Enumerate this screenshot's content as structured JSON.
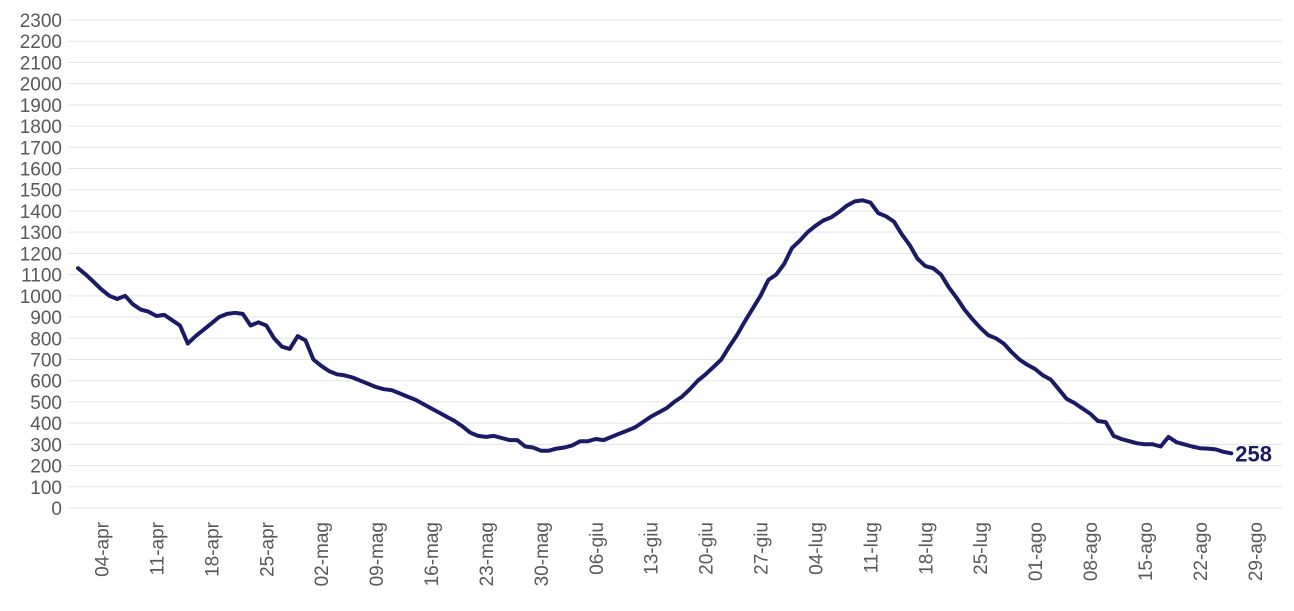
{
  "chart_data": {
    "type": "line",
    "title": "",
    "xlabel": "",
    "ylabel": "",
    "ylim": [
      0,
      2300
    ],
    "yticks": [
      0,
      100,
      200,
      300,
      400,
      500,
      600,
      700,
      800,
      900,
      1000,
      1100,
      1200,
      1300,
      1400,
      1500,
      1600,
      1700,
      1800,
      1900,
      2000,
      2100,
      2200,
      2300
    ],
    "xticks": [
      {
        "day": 3,
        "label": "04-apr"
      },
      {
        "day": 10,
        "label": "11-apr"
      },
      {
        "day": 17,
        "label": "18-apr"
      },
      {
        "day": 24,
        "label": "25-apr"
      },
      {
        "day": 31,
        "label": "02-mag"
      },
      {
        "day": 38,
        "label": "09-mag"
      },
      {
        "day": 45,
        "label": "16-mag"
      },
      {
        "day": 52,
        "label": "23-mag"
      },
      {
        "day": 59,
        "label": "30-mag"
      },
      {
        "day": 66,
        "label": "06-giu"
      },
      {
        "day": 73,
        "label": "13-giu"
      },
      {
        "day": 80,
        "label": "20-giu"
      },
      {
        "day": 87,
        "label": "27-giu"
      },
      {
        "day": 94,
        "label": "04-lug"
      },
      {
        "day": 101,
        "label": "11-lug"
      },
      {
        "day": 108,
        "label": "18-lug"
      },
      {
        "day": 115,
        "label": "25-lug"
      },
      {
        "day": 122,
        "label": "01-ago"
      },
      {
        "day": 129,
        "label": "08-ago"
      },
      {
        "day": 136,
        "label": "15-ago"
      },
      {
        "day": 143,
        "label": "22-ago"
      },
      {
        "day": 150,
        "label": "29-ago"
      }
    ],
    "xlim": [
      0,
      152
    ],
    "grid": true,
    "line_color": "#1a1a66",
    "end_label": "258",
    "series": [
      {
        "points": [
          [
            0,
            1130
          ],
          [
            1,
            1100
          ],
          [
            2,
            1065
          ],
          [
            3,
            1030
          ],
          [
            4,
            1000
          ],
          [
            5,
            985
          ],
          [
            6,
            1000
          ],
          [
            7,
            960
          ],
          [
            8,
            935
          ],
          [
            9,
            925
          ],
          [
            10,
            905
          ],
          [
            11,
            910
          ],
          [
            12,
            885
          ],
          [
            13,
            860
          ],
          [
            14,
            775
          ],
          [
            15,
            810
          ],
          [
            16,
            840
          ],
          [
            17,
            870
          ],
          [
            18,
            900
          ],
          [
            19,
            915
          ],
          [
            20,
            920
          ],
          [
            21,
            915
          ],
          [
            22,
            860
          ],
          [
            23,
            875
          ],
          [
            24,
            860
          ],
          [
            25,
            800
          ],
          [
            26,
            760
          ],
          [
            27,
            750
          ],
          [
            28,
            810
          ],
          [
            29,
            790
          ],
          [
            30,
            700
          ],
          [
            31,
            670
          ],
          [
            32,
            645
          ],
          [
            33,
            630
          ],
          [
            34,
            625
          ],
          [
            35,
            615
          ],
          [
            36,
            600
          ],
          [
            37,
            585
          ],
          [
            38,
            570
          ],
          [
            39,
            560
          ],
          [
            40,
            555
          ],
          [
            41,
            540
          ],
          [
            42,
            525
          ],
          [
            43,
            510
          ],
          [
            44,
            490
          ],
          [
            45,
            470
          ],
          [
            46,
            450
          ],
          [
            47,
            430
          ],
          [
            48,
            410
          ],
          [
            49,
            385
          ],
          [
            50,
            355
          ],
          [
            51,
            340
          ],
          [
            52,
            335
          ],
          [
            53,
            340
          ],
          [
            54,
            330
          ],
          [
            55,
            320
          ],
          [
            56,
            320
          ],
          [
            57,
            290
          ],
          [
            58,
            285
          ],
          [
            59,
            270
          ],
          [
            60,
            270
          ],
          [
            61,
            280
          ],
          [
            62,
            285
          ],
          [
            63,
            295
          ],
          [
            64,
            315
          ],
          [
            65,
            315
          ],
          [
            66,
            325
          ],
          [
            67,
            320
          ],
          [
            68,
            335
          ],
          [
            69,
            350
          ],
          [
            70,
            365
          ],
          [
            71,
            380
          ],
          [
            72,
            405
          ],
          [
            73,
            430
          ],
          [
            74,
            450
          ],
          [
            75,
            470
          ],
          [
            76,
            500
          ],
          [
            77,
            525
          ],
          [
            78,
            560
          ],
          [
            79,
            600
          ],
          [
            80,
            630
          ],
          [
            81,
            665
          ],
          [
            82,
            700
          ],
          [
            83,
            760
          ],
          [
            84,
            815
          ],
          [
            85,
            880
          ],
          [
            86,
            940
          ],
          [
            87,
            1000
          ],
          [
            88,
            1075
          ],
          [
            89,
            1100
          ],
          [
            90,
            1150
          ],
          [
            91,
            1225
          ],
          [
            92,
            1260
          ],
          [
            93,
            1300
          ],
          [
            94,
            1330
          ],
          [
            95,
            1355
          ],
          [
            96,
            1370
          ],
          [
            97,
            1395
          ],
          [
            98,
            1425
          ],
          [
            99,
            1445
          ],
          [
            100,
            1450
          ],
          [
            101,
            1440
          ],
          [
            102,
            1390
          ],
          [
            103,
            1375
          ],
          [
            104,
            1350
          ],
          [
            105,
            1290
          ],
          [
            106,
            1240
          ],
          [
            107,
            1175
          ],
          [
            108,
            1140
          ],
          [
            109,
            1130
          ],
          [
            110,
            1100
          ],
          [
            111,
            1040
          ],
          [
            112,
            990
          ],
          [
            113,
            935
          ],
          [
            114,
            890
          ],
          [
            115,
            850
          ],
          [
            116,
            815
          ],
          [
            117,
            800
          ],
          [
            118,
            775
          ],
          [
            119,
            735
          ],
          [
            120,
            700
          ],
          [
            121,
            675
          ],
          [
            122,
            655
          ],
          [
            123,
            625
          ],
          [
            124,
            605
          ],
          [
            125,
            560
          ],
          [
            126,
            515
          ],
          [
            127,
            495
          ],
          [
            128,
            470
          ],
          [
            129,
            445
          ],
          [
            130,
            410
          ],
          [
            131,
            405
          ],
          [
            132,
            340
          ],
          [
            133,
            325
          ],
          [
            134,
            315
          ],
          [
            135,
            305
          ],
          [
            136,
            300
          ],
          [
            137,
            300
          ],
          [
            138,
            290
          ],
          [
            139,
            335
          ],
          [
            140,
            310
          ],
          [
            141,
            300
          ],
          [
            142,
            290
          ],
          [
            143,
            282
          ],
          [
            144,
            280
          ],
          [
            145,
            276
          ],
          [
            146,
            265
          ],
          [
            147,
            258
          ]
        ]
      }
    ]
  }
}
